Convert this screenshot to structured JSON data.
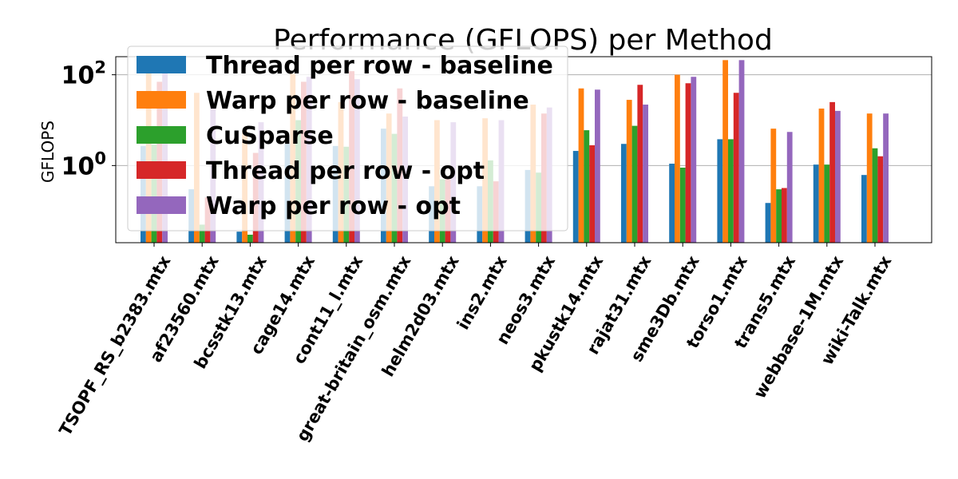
{
  "chart_data": {
    "type": "bar",
    "title": "Performance (GFLOPS) per Method",
    "ylabel": "GFLOPS",
    "xlabel": "",
    "yscale": "log",
    "ylim": [
      0.02,
      250
    ],
    "yticks": [
      {
        "value": 1,
        "base": "10",
        "exp": "0"
      },
      {
        "value": 100,
        "base": "10",
        "exp": "2"
      }
    ],
    "grid": "y-major",
    "legend_position": "upper left",
    "categories": [
      "TSOPF_RS_b2383.mtx",
      "af23560.mtx",
      "bcsstk13.mtx",
      "cage14.mtx",
      "cont11_l.mtx",
      "great-britain_osm.mtx",
      "helm2d03.mtx",
      "ins2.mtx",
      "neos3.mtx",
      "pkustk14.mtx",
      "rajat31.mtx",
      "sme3Db.mtx",
      "torso1.mtx",
      "trans5.mtx",
      "webbase-1M.mtx",
      "wiki-Talk.mtx"
    ],
    "series": [
      {
        "name": "Thread per row - baseline",
        "color": "#1f77b4",
        "values": [
          2.7,
          0.3,
          0.035,
          3.0,
          2.7,
          6.5,
          0.35,
          0.35,
          0.8,
          2.1,
          3.0,
          1.1,
          3.8,
          0.15,
          1.05,
          0.62
        ]
      },
      {
        "name": "Warp per row - baseline",
        "color": "#ff7f0e",
        "values": [
          110,
          40,
          6.0,
          105,
          25,
          14,
          10,
          11,
          22,
          50,
          28,
          100,
          210,
          6.5,
          18,
          14
        ]
      },
      {
        "name": "CuSparse",
        "color": "#2ca02c",
        "values": [
          2.9,
          0.05,
          0.03,
          10,
          2.6,
          5.0,
          0.5,
          1.3,
          0.7,
          6.0,
          7.5,
          0.9,
          3.8,
          0.3,
          1.05,
          2.4
        ]
      },
      {
        "name": "Thread per row - opt",
        "color": "#d62728",
        "values": [
          70,
          0.2,
          1.9,
          70,
          120,
          50,
          0.5,
          0.45,
          14,
          2.8,
          60,
          65,
          40,
          0.32,
          25,
          1.6
        ]
      },
      {
        "name": "Warp per row - opt",
        "color": "#9467bd",
        "values": [
          120,
          25,
          9.0,
          90,
          80,
          12,
          9.0,
          10,
          19,
          47,
          22,
          90,
          210,
          5.5,
          16,
          14
        ]
      }
    ]
  }
}
